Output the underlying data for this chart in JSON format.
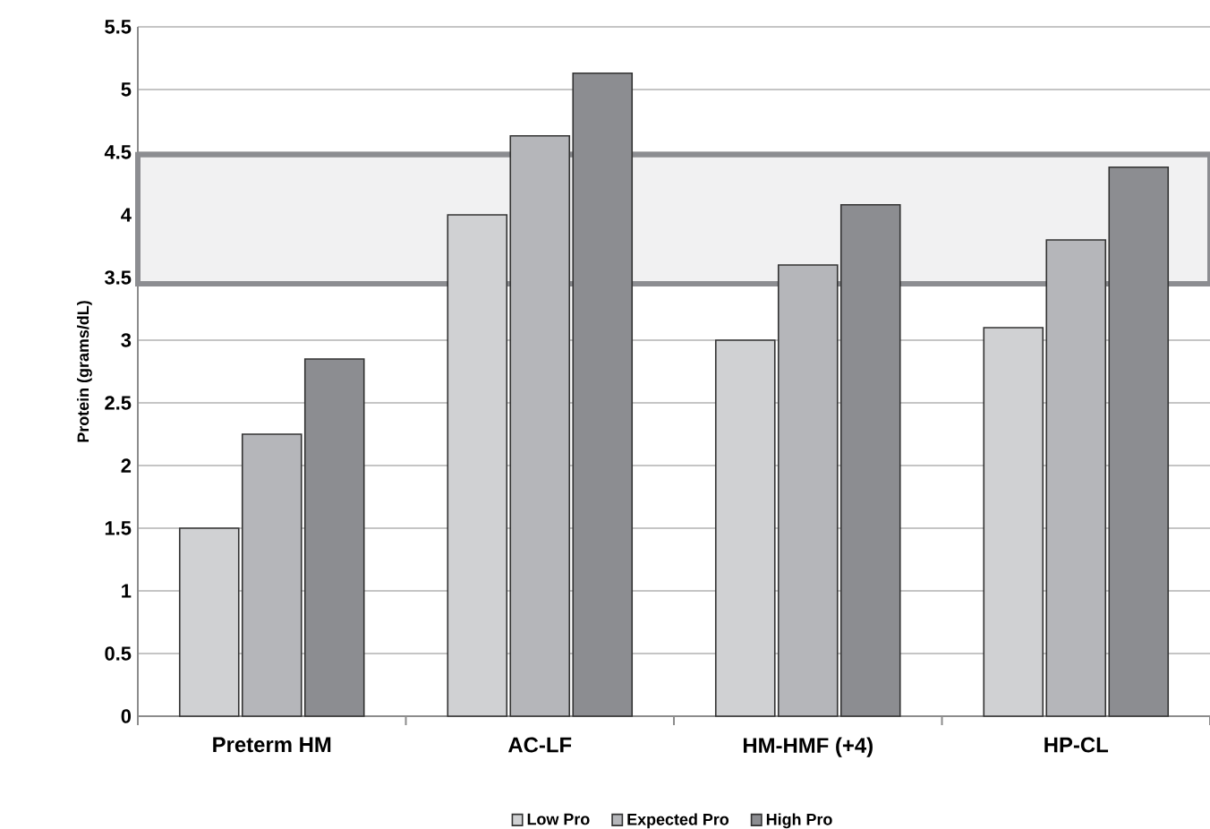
{
  "chart_data": {
    "type": "bar",
    "ylabel": "Protein (grams/dL)",
    "categories": [
      "Preterm HM",
      "AC-LF",
      "HM-HMF (+4)",
      "HP-CL"
    ],
    "series": [
      {
        "name": "Low Pro",
        "color": "#d0d1d3",
        "values": [
          1.5,
          4.0,
          3.0,
          3.1
        ]
      },
      {
        "name": "Expected Pro",
        "color": "#b5b6ba",
        "values": [
          2.25,
          4.63,
          3.6,
          3.8
        ]
      },
      {
        "name": "High Pro",
        "color": "#8c8d91",
        "values": [
          2.85,
          5.13,
          4.08,
          4.38
        ]
      }
    ],
    "ylim": [
      0,
      5.5
    ],
    "yticks": [
      0,
      0.5,
      1,
      1.5,
      2,
      2.5,
      3,
      3.5,
      4,
      4.5,
      5,
      5.5
    ],
    "bands": [
      {
        "axis": "y",
        "from": 3.45,
        "to": 4.48,
        "color": "#8c8d91"
      }
    ],
    "grid": "y",
    "legend": "bottom"
  }
}
